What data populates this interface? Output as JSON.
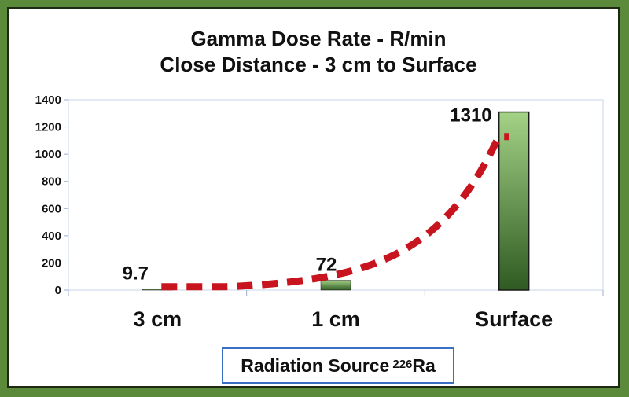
{
  "chart_data": {
    "type": "bar",
    "title_line1": "Gamma Dose Rate - R/min",
    "title_line2": "Close Distance - 3 cm to Surface",
    "categories": [
      "3 cm",
      "1 cm",
      "Surface"
    ],
    "values": [
      9.7,
      72,
      1310
    ],
    "data_labels": [
      "9.7",
      "72",
      "1310"
    ],
    "ylim": [
      0,
      1400
    ],
    "yticks": [
      0,
      200,
      400,
      600,
      800,
      1000,
      1200,
      1400
    ],
    "trendline": {
      "style": "dashed",
      "color": "#c8141e",
      "kind": "exponential"
    },
    "colors": {
      "bar_top": "#a4d286",
      "bar_bottom": "#2f5a22",
      "frame": "#5a8a3a",
      "box_border": "#3a6fc4"
    },
    "xlabel_box": {
      "text": "Radiation Source",
      "superscript": "226",
      "element": "Ra"
    }
  }
}
